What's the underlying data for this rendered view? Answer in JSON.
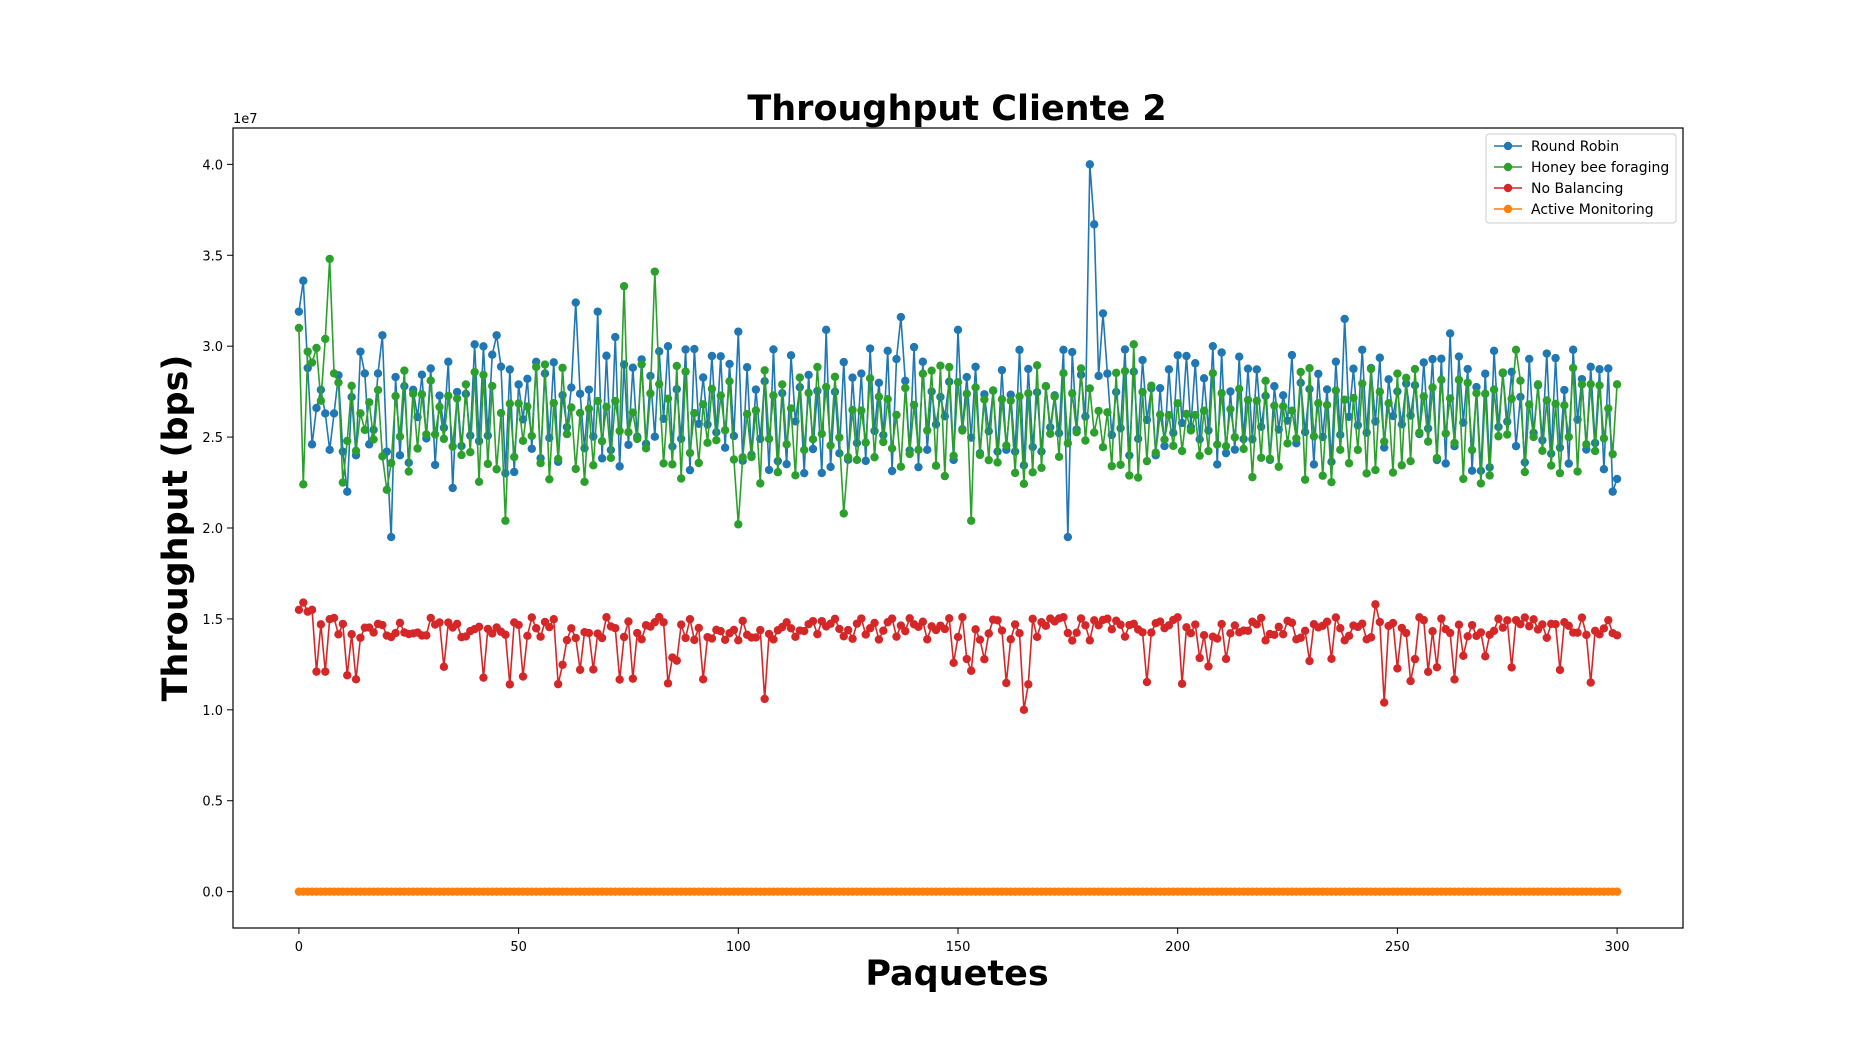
{
  "chart_data": {
    "type": "line",
    "title": "Throughput Cliente 2",
    "xlabel": "Paquetes",
    "ylabel": "Throughput (bps)",
    "y_offset_text": "1e7",
    "xlim": [
      -15,
      315
    ],
    "ylim": [
      -0.2,
      4.2
    ],
    "y_scale_factor": 10000000,
    "x_ticks": [
      0,
      50,
      100,
      150,
      200,
      250,
      300
    ],
    "y_ticks": [
      0.0,
      0.5,
      1.0,
      1.5,
      2.0,
      2.5,
      3.0,
      3.5,
      4.0
    ],
    "x_tick_labels": [
      "0",
      "50",
      "100",
      "150",
      "200",
      "250",
      "300"
    ],
    "y_tick_labels": [
      "0.0",
      "0.5",
      "1.0",
      "1.5",
      "2.0",
      "2.5",
      "3.0",
      "3.5",
      "4.0"
    ],
    "grid": false,
    "legend_position": "top-right",
    "num_points": 301,
    "series": [
      {
        "name": "Round Robin",
        "color": "#1f77b4",
        "x_range": [
          0,
          300
        ],
        "values_1e7_approx_summary": "oscillates ~2.3-3.0, spike ~4.0 at x=180",
        "key_values": [
          [
            0,
            3.19
          ],
          [
            1,
            3.36
          ],
          [
            2,
            2.88
          ],
          [
            3,
            2.46
          ],
          [
            4,
            2.66
          ],
          [
            5,
            2.76
          ],
          [
            6,
            2.63
          ],
          [
            7,
            2.43
          ],
          [
            8,
            2.63
          ],
          [
            9,
            2.84
          ],
          [
            10,
            2.42
          ],
          [
            11,
            2.2
          ],
          [
            12,
            2.72
          ],
          [
            13,
            2.4
          ],
          [
            14,
            2.97
          ],
          [
            15,
            2.85
          ],
          [
            16,
            2.46
          ],
          [
            17,
            2.54
          ],
          [
            18,
            2.85
          ],
          [
            19,
            3.06
          ],
          [
            20,
            2.42
          ],
          [
            21,
            1.95
          ],
          [
            22,
            2.83
          ],
          [
            23,
            2.4
          ],
          [
            24,
            2.78
          ],
          [
            35,
            2.22
          ],
          [
            40,
            3.01
          ],
          [
            45,
            3.06
          ],
          [
            60,
            2.73
          ],
          [
            63,
            3.24
          ],
          [
            68,
            3.19
          ],
          [
            72,
            3.05
          ],
          [
            100,
            3.08
          ],
          [
            120,
            3.09
          ],
          [
            137,
            3.16
          ],
          [
            150,
            3.09
          ],
          [
            175,
            1.95
          ],
          [
            180,
            4.0
          ],
          [
            181,
            3.67
          ],
          [
            183,
            3.18
          ],
          [
            200,
            2.95
          ],
          [
            238,
            3.15
          ],
          [
            262,
            3.07
          ],
          [
            299,
            2.2
          ],
          [
            300,
            2.27
          ]
        ]
      },
      {
        "name": "Honey bee foraging",
        "color": "#2ca02c",
        "x_range": [
          0,
          300
        ],
        "values_1e7_approx_summary": "oscillates ~2.2-3.0, peaks 3.48 at x=7, 3.41 at x=81",
        "key_values": [
          [
            0,
            3.1
          ],
          [
            1,
            2.24
          ],
          [
            2,
            2.97
          ],
          [
            3,
            2.91
          ],
          [
            4,
            2.99
          ],
          [
            5,
            2.7
          ],
          [
            6,
            3.04
          ],
          [
            7,
            3.48
          ],
          [
            8,
            2.85
          ],
          [
            9,
            2.8
          ],
          [
            10,
            2.25
          ],
          [
            20,
            2.21
          ],
          [
            47,
            2.04
          ],
          [
            74,
            3.33
          ],
          [
            81,
            3.41
          ],
          [
            100,
            2.02
          ],
          [
            124,
            2.08
          ],
          [
            153,
            2.04
          ],
          [
            190,
            3.01
          ],
          [
            277,
            2.98
          ],
          [
            300,
            2.79
          ]
        ]
      },
      {
        "name": "No Balancing",
        "color": "#d62728",
        "x_range": [
          0,
          300
        ],
        "values_1e7_approx_summary": "around 1.4-1.5, dips to ~1.0-1.2",
        "key_values": [
          [
            0,
            1.55
          ],
          [
            1,
            1.59
          ],
          [
            2,
            1.54
          ],
          [
            3,
            1.55
          ],
          [
            4,
            1.21
          ],
          [
            5,
            1.47
          ],
          [
            6,
            1.21
          ],
          [
            11,
            1.19
          ],
          [
            48,
            1.14
          ],
          [
            106,
            1.06
          ],
          [
            165,
            1.0
          ],
          [
            166,
            1.14
          ],
          [
            245,
            1.58
          ],
          [
            247,
            1.04
          ],
          [
            300,
            1.41
          ]
        ]
      },
      {
        "name": "Active Monitoring",
        "color": "#ff7f0e",
        "x_range": [
          0,
          300
        ],
        "constant_value": 0.0
      }
    ]
  }
}
